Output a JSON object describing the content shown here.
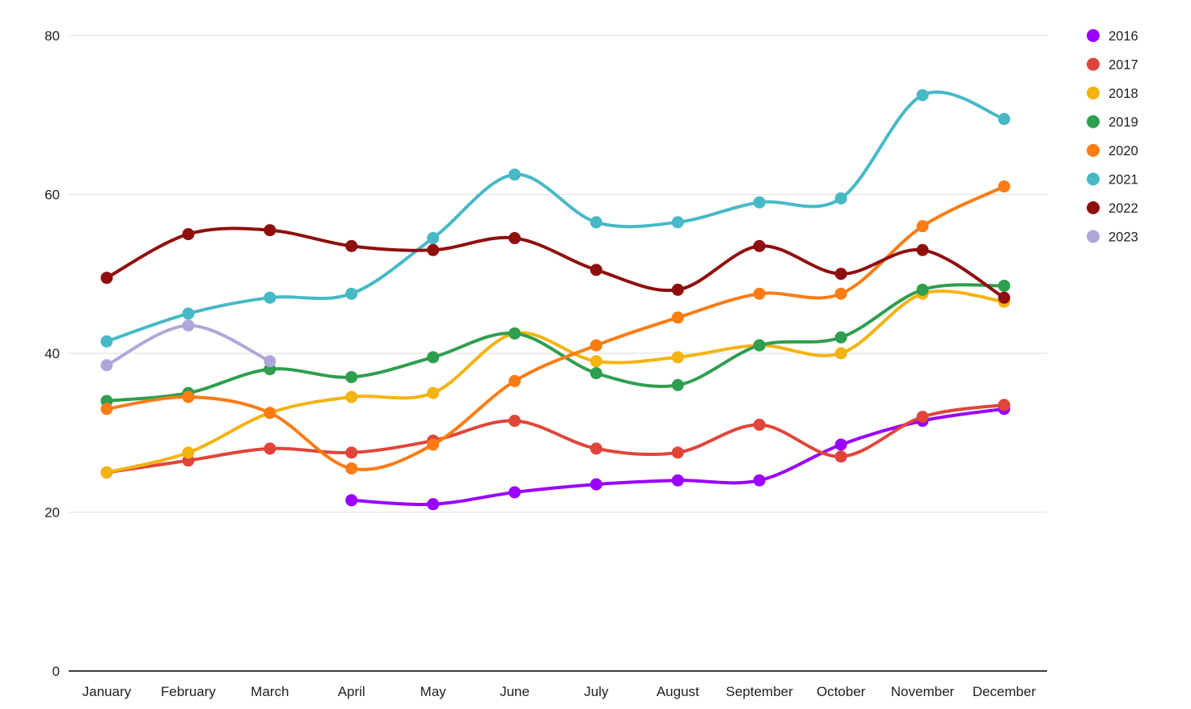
{
  "chart_data": {
    "type": "line",
    "title": "",
    "xlabel": "",
    "ylabel": "",
    "categories": [
      "January",
      "February",
      "March",
      "April",
      "May",
      "June",
      "July",
      "August",
      "September",
      "October",
      "November",
      "December"
    ],
    "ylim": [
      0,
      80
    ],
    "yticks": [
      0,
      20,
      40,
      60,
      80
    ],
    "grid": true,
    "legend_position": "right",
    "series": [
      {
        "name": "2016",
        "color": "#9900ff",
        "values": [
          null,
          null,
          null,
          21.5,
          21,
          22.5,
          23.5,
          24,
          24,
          28.5,
          31.5,
          33
        ]
      },
      {
        "name": "2017",
        "color": "#e0453a",
        "values": [
          25,
          26.5,
          28,
          27.5,
          29,
          31.5,
          28,
          27.5,
          31,
          27,
          32,
          33.5
        ]
      },
      {
        "name": "2018",
        "color": "#f3b310",
        "values": [
          25,
          27.5,
          32.5,
          34.5,
          35,
          42.5,
          39,
          39.5,
          41,
          40,
          47.5,
          46.5
        ]
      },
      {
        "name": "2019",
        "color": "#2f9e4f",
        "values": [
          34,
          35,
          38,
          37,
          39.5,
          42.5,
          37.5,
          36,
          41,
          42,
          48,
          48.5
        ]
      },
      {
        "name": "2020",
        "color": "#fb7c14",
        "values": [
          33,
          34.5,
          32.5,
          25.5,
          28.5,
          36.5,
          41,
          44.5,
          47.5,
          47.5,
          56,
          61
        ]
      },
      {
        "name": "2021",
        "color": "#47b8c6",
        "values": [
          41.5,
          45,
          47,
          47.5,
          54.5,
          62.5,
          56.5,
          56.5,
          59,
          59.5,
          72.5,
          69.5
        ]
      },
      {
        "name": "2022",
        "color": "#8e0f0d",
        "values": [
          49.5,
          55,
          55.5,
          53.5,
          53,
          54.5,
          50.5,
          48,
          53.5,
          50,
          53,
          47
        ]
      },
      {
        "name": "2023",
        "color": "#b2a6d9",
        "values": [
          38.5,
          43.5,
          39,
          null,
          null,
          null,
          null,
          null,
          null,
          null,
          null,
          null
        ]
      }
    ],
    "axis_colors": {
      "gridline": "#e3e3e3",
      "baseline": "#3c3c3c",
      "tick_text": "#1f1f1f"
    }
  }
}
